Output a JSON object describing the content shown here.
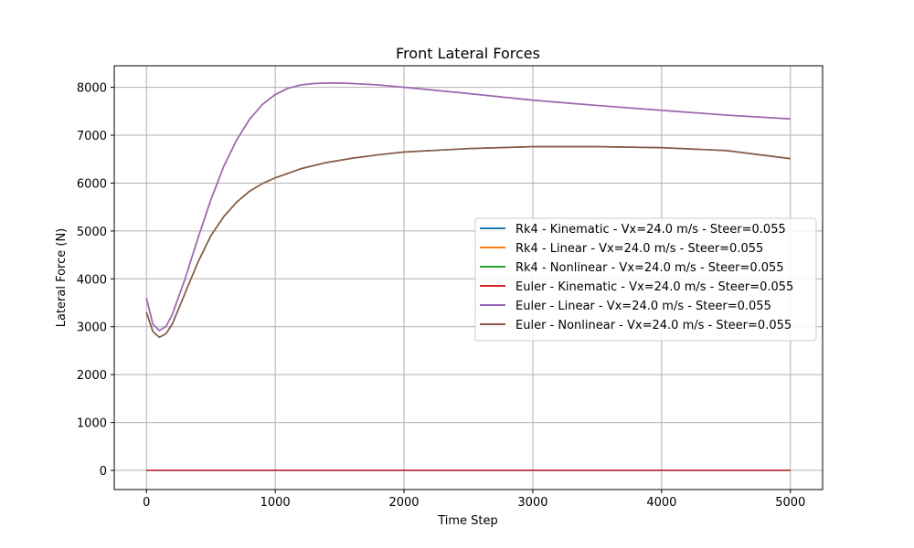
{
  "chart_data": {
    "type": "line",
    "title": "Front Lateral Forces",
    "xlabel": "Time Step",
    "ylabel": "Lateral Force (N)",
    "xlim": [
      -250,
      5250
    ],
    "ylim": [
      -400,
      8450
    ],
    "xticks": [
      0,
      1000,
      2000,
      3000,
      4000,
      5000
    ],
    "yticks": [
      0,
      1000,
      2000,
      3000,
      4000,
      5000,
      6000,
      7000,
      8000
    ],
    "grid": true,
    "legend_position": "center-right",
    "series": [
      {
        "name": "Rk4 - Kinematic - Vx=24.0 m/s - Steer=0.055",
        "color": "#1f77b4",
        "x": [
          0,
          5000
        ],
        "y": [
          0,
          0
        ]
      },
      {
        "name": "Rk4 - Linear - Vx=24.0 m/s - Steer=0.055",
        "color": "#ff7f0e",
        "x": [
          0,
          50,
          100,
          150,
          200,
          300,
          400,
          500,
          600,
          700,
          800,
          900,
          1000,
          1100,
          1200,
          1300,
          1400,
          1500,
          1600,
          1800,
          2000,
          2500,
          3000,
          3500,
          4000,
          4500,
          5000
        ],
        "y": [
          3600,
          3050,
          2920,
          3000,
          3250,
          4000,
          4850,
          5650,
          6350,
          6900,
          7330,
          7640,
          7850,
          7980,
          8050,
          8080,
          8090,
          8090,
          8080,
          8050,
          8000,
          7870,
          7730,
          7620,
          7520,
          7420,
          7340
        ]
      },
      {
        "name": "Rk4 - Nonlinear - Vx=24.0 m/s - Steer=0.055",
        "color": "#2ca02c",
        "x": [
          0,
          50,
          100,
          150,
          200,
          300,
          400,
          500,
          600,
          700,
          800,
          900,
          1000,
          1200,
          1400,
          1600,
          1800,
          2000,
          2500,
          3000,
          3500,
          4000,
          4500,
          5000
        ],
        "y": [
          3300,
          2900,
          2780,
          2850,
          3050,
          3700,
          4350,
          4900,
          5300,
          5600,
          5830,
          5990,
          6110,
          6300,
          6430,
          6520,
          6590,
          6650,
          6720,
          6760,
          6760,
          6740,
          6680,
          6510
        ]
      },
      {
        "name": "Euler - Kinematic - Vx=24.0 m/s - Steer=0.055",
        "color": "#d62728",
        "x": [
          0,
          5000
        ],
        "y": [
          0,
          0
        ]
      },
      {
        "name": "Euler - Linear - Vx=24.0 m/s - Steer=0.055",
        "color": "#9467bd",
        "x": [
          0,
          50,
          100,
          150,
          200,
          300,
          400,
          500,
          600,
          700,
          800,
          900,
          1000,
          1100,
          1200,
          1300,
          1400,
          1500,
          1600,
          1800,
          2000,
          2500,
          3000,
          3500,
          4000,
          4500,
          5000
        ],
        "y": [
          3600,
          3050,
          2920,
          3000,
          3250,
          4000,
          4850,
          5650,
          6350,
          6900,
          7330,
          7640,
          7850,
          7980,
          8050,
          8080,
          8090,
          8090,
          8080,
          8050,
          8000,
          7870,
          7730,
          7620,
          7520,
          7420,
          7340
        ]
      },
      {
        "name": "Euler - Nonlinear - Vx=24.0 m/s - Steer=0.055",
        "color": "#8c564b",
        "x": [
          0,
          50,
          100,
          150,
          200,
          300,
          400,
          500,
          600,
          700,
          800,
          900,
          1000,
          1200,
          1400,
          1600,
          1800,
          2000,
          2500,
          3000,
          3500,
          4000,
          4500,
          5000
        ],
        "y": [
          3300,
          2900,
          2780,
          2850,
          3050,
          3700,
          4350,
          4900,
          5300,
          5600,
          5830,
          5990,
          6110,
          6300,
          6430,
          6520,
          6590,
          6650,
          6720,
          6760,
          6760,
          6740,
          6680,
          6510
        ]
      }
    ]
  }
}
